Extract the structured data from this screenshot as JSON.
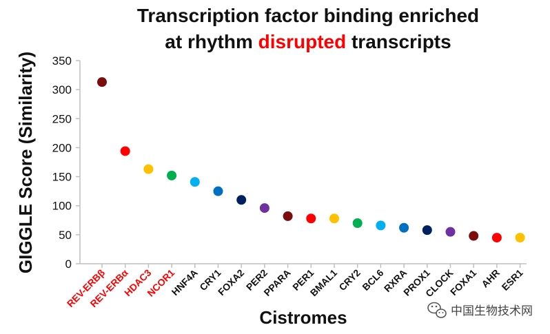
{
  "chart_data": {
    "type": "scatter",
    "title_parts": [
      {
        "text": "Transcription factor binding enriched",
        "line": 1,
        "color": "#111111"
      },
      {
        "text": "at rhythm ",
        "line": 2,
        "color": "#111111"
      },
      {
        "text": "disrupted",
        "line": 2,
        "color": "#ff0000"
      },
      {
        "text": " transcripts",
        "line": 2,
        "color": "#111111"
      }
    ],
    "xlabel": "Cistromes",
    "ylabel": "GIGGLE Score (Similarity)",
    "ylim": [
      0,
      350
    ],
    "yticks": [
      "0",
      "50",
      "100",
      "150",
      "200",
      "250",
      "300",
      "350"
    ],
    "grid": false,
    "categories": [
      "REV-ERBβ",
      "REV-ERBα",
      "HDAC3",
      "NCOR1",
      "HNF4A",
      "CRY1",
      "FOXA2",
      "PER2",
      "PPARA",
      "PER1",
      "BMAL1",
      "CRY2",
      "BCL6",
      "RXRA",
      "PROX1",
      "CLOCK",
      "FOXA1",
      "AHR",
      "ESR1"
    ],
    "category_label_colors": [
      "#ff0000",
      "#ff0000",
      "#ff0000",
      "#ff0000",
      "#111111",
      "#111111",
      "#111111",
      "#111111",
      "#111111",
      "#111111",
      "#111111",
      "#111111",
      "#111111",
      "#111111",
      "#111111",
      "#111111",
      "#111111",
      "#111111",
      "#111111"
    ],
    "values": [
      313,
      194,
      163,
      152,
      141,
      125,
      110,
      96,
      82,
      78,
      78,
      70,
      66,
      62,
      58,
      55,
      48,
      45,
      45
    ],
    "point_colors": [
      "#7b0d0d",
      "#ff0000",
      "#ffc000",
      "#00b050",
      "#00b0f0",
      "#0070c0",
      "#002060",
      "#7030a0",
      "#7b0d0d",
      "#ff0000",
      "#ffc000",
      "#00b050",
      "#00b0f0",
      "#0070c0",
      "#002060",
      "#7030a0",
      "#7b0d0d",
      "#ff0000",
      "#ffc000"
    ]
  },
  "watermark": {
    "text": "中国生物技术网",
    "icon": "wechat-logo-icon"
  }
}
